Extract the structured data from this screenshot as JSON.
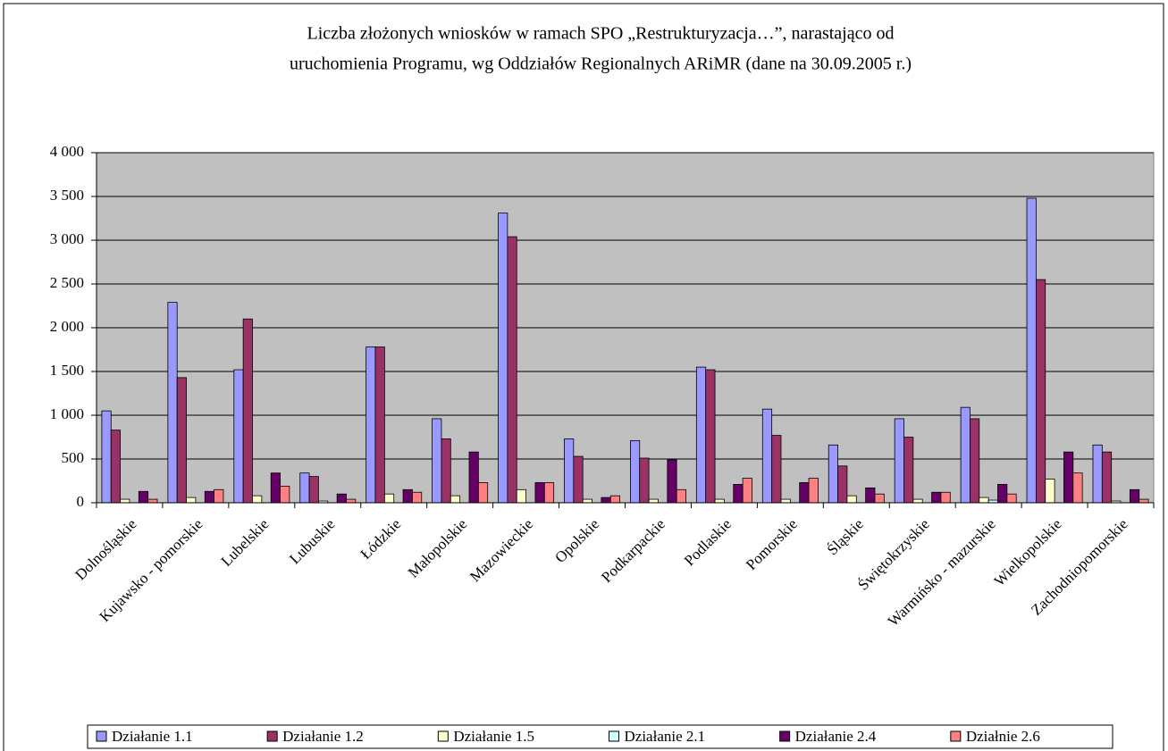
{
  "chart_data": {
    "type": "bar",
    "title": [
      "Liczba złożonych wniosków w ramach SPO „Restrukturyzacja…”, narastająco od",
      "uruchomienia Programu, wg Oddziałów Regionalnych ARiMR (dane na 30.09.2005 r.)"
    ],
    "categories": [
      "Dolnośląskie",
      "Kujawsko - pomorskie",
      "Lubelskie",
      "Lubuskie",
      "Łódzkie",
      "Małopolskie",
      "Mazowieckie",
      "Opolskie",
      "Podkarpackie",
      "Podlaskie",
      "Pomorskie",
      "Śląskie",
      "Świętokrzyskie",
      "Warmińsko - mazurskie",
      "Wielkopolskie",
      "Zachodniopomorskie"
    ],
    "series": [
      {
        "name": "Działanie 1.1",
        "color": "#9999ff",
        "values": [
          1050,
          2290,
          1520,
          340,
          1780,
          960,
          3310,
          730,
          710,
          1550,
          1070,
          660,
          960,
          1090,
          3480,
          660
        ]
      },
      {
        "name": "Działanie 1.2",
        "color": "#993366",
        "values": [
          830,
          1430,
          2100,
          300,
          1780,
          730,
          3040,
          530,
          510,
          1520,
          770,
          420,
          750,
          960,
          2550,
          580
        ]
      },
      {
        "name": "Działanie 1.5",
        "color": "#ffffcc",
        "values": [
          40,
          60,
          80,
          20,
          100,
          80,
          150,
          40,
          40,
          40,
          40,
          80,
          40,
          60,
          270,
          20
        ]
      },
      {
        "name": "Działanie 2.1",
        "color": "#ccffff",
        "values": [
          0,
          0,
          0,
          0,
          0,
          0,
          0,
          0,
          0,
          0,
          0,
          0,
          0,
          30,
          0,
          0
        ]
      },
      {
        "name": "Działanie 2.4",
        "color": "#660066",
        "values": [
          130,
          130,
          340,
          100,
          150,
          580,
          230,
          60,
          490,
          210,
          230,
          170,
          120,
          210,
          580,
          150
        ]
      },
      {
        "name": "Działnie 2.6",
        "color": "#ff8080",
        "values": [
          40,
          150,
          190,
          40,
          120,
          230,
          230,
          80,
          150,
          280,
          280,
          100,
          120,
          100,
          340,
          40
        ]
      }
    ],
    "ylim": [
      0,
      4000
    ],
    "yticks": [
      0,
      {
        "value": 500,
        "label": "500"
      },
      {
        "value": 1000,
        "label": "1 000"
      },
      {
        "value": 1500,
        "label": "1 500"
      },
      {
        "value": 2000,
        "label": "2 000"
      },
      {
        "value": 2500,
        "label": "2 500"
      },
      {
        "value": 3000,
        "label": "3 000"
      },
      {
        "value": 3500,
        "label": "3 500"
      },
      {
        "value": 4000,
        "label": "4 000"
      }
    ],
    "plot_background": "#c0c0c0",
    "grid": true,
    "legend": "bottom"
  }
}
